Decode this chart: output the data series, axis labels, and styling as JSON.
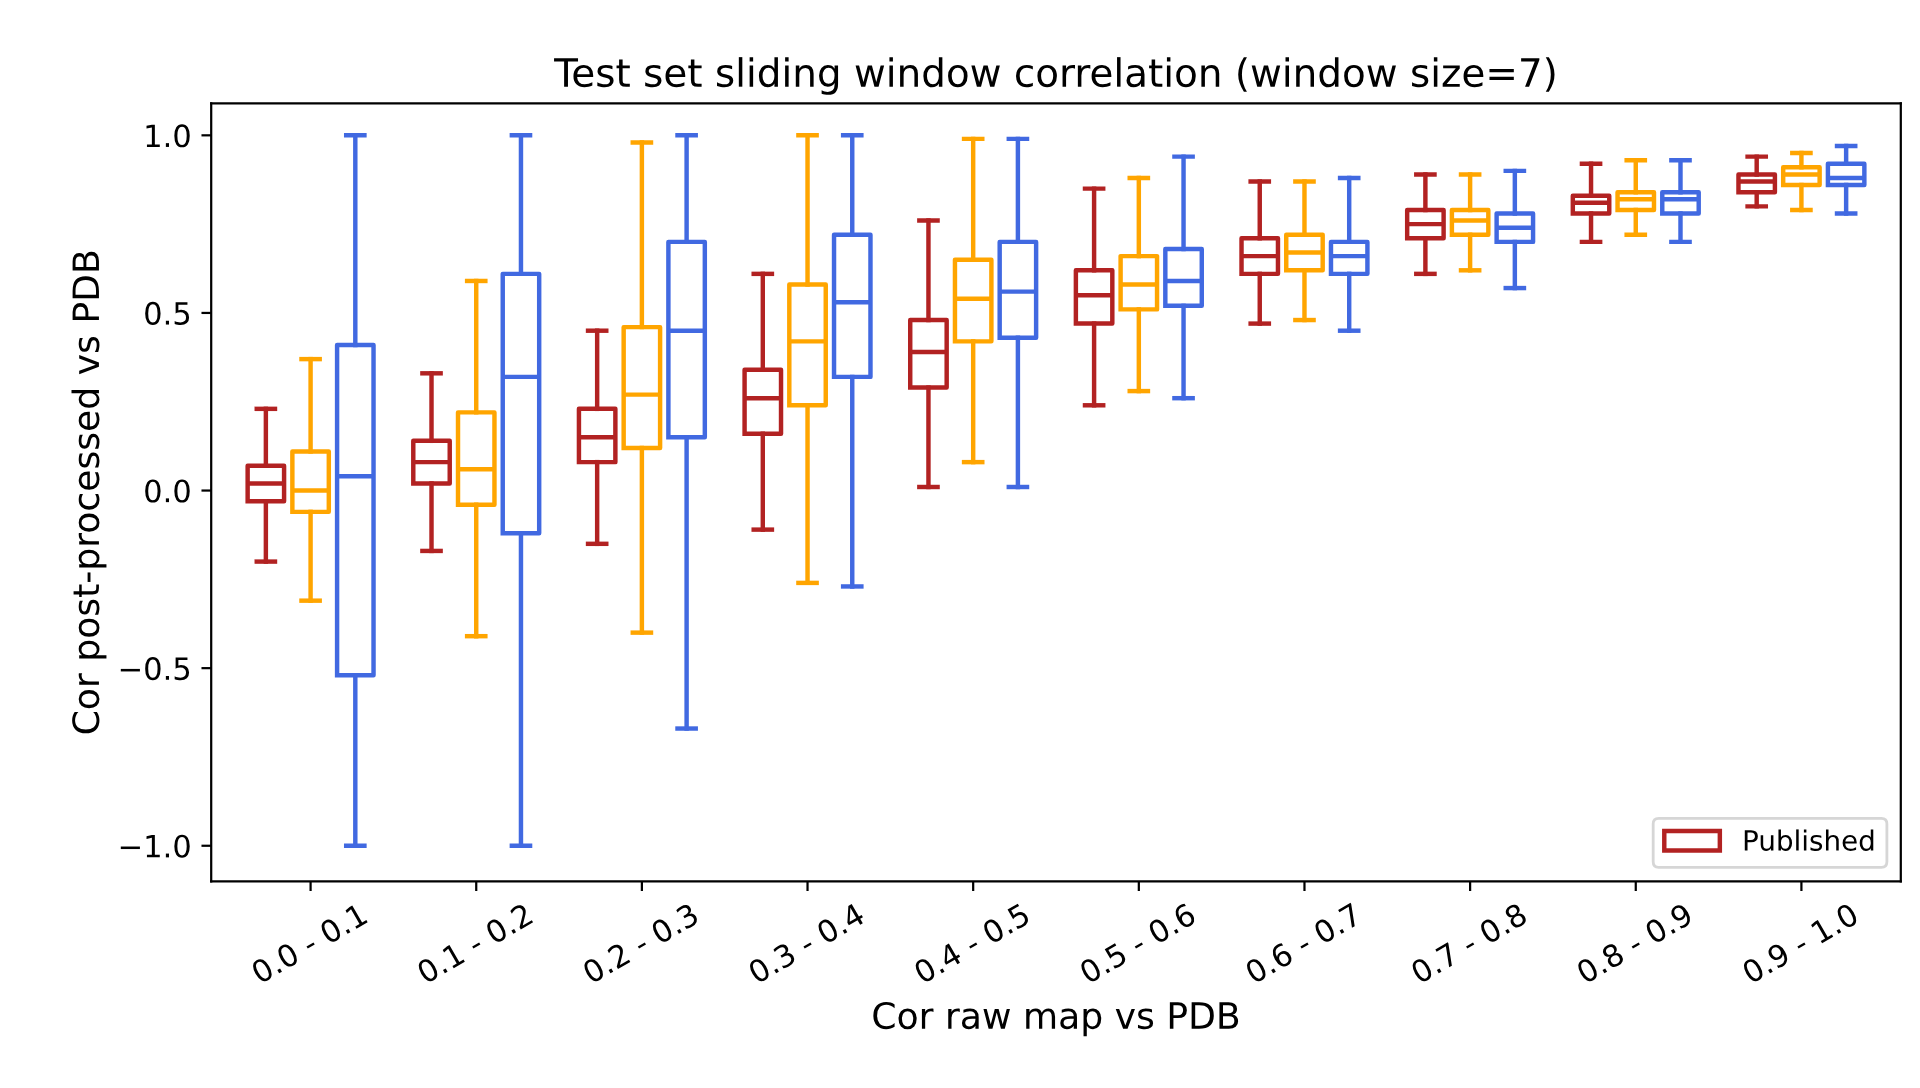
{
  "chart_data": {
    "type": "box",
    "title": "Test set sliding window correlation (window size=7)",
    "xlabel": "Cor raw map vs PDB",
    "ylabel": "Cor post-processed vs PDB",
    "categories": [
      "0.0 - 0.1",
      "0.1 - 0.2",
      "0.2 - 0.3",
      "0.3 - 0.4",
      "0.4 - 0.5",
      "0.5 - 0.6",
      "0.6 - 0.7",
      "0.7 - 0.8",
      "0.8 - 0.9",
      "0.9 - 1.0"
    ],
    "ylim": [
      -1.1,
      1.09
    ],
    "yticks": [
      {
        "value": -1.0,
        "label": "−1.0"
      },
      {
        "value": -0.5,
        "label": "−0.5"
      },
      {
        "value": 0.0,
        "label": "0.0"
      },
      {
        "value": 0.5,
        "label": "0.5"
      },
      {
        "value": 1.0,
        "label": "1.0"
      }
    ],
    "legend": "bottom right",
    "grid": false,
    "series": [
      {
        "name": "Published",
        "color": "#b22222",
        "boxes": [
          {
            "low": -0.2,
            "q1": -0.03,
            "median": 0.02,
            "q3": 0.07,
            "high": 0.23
          },
          {
            "low": -0.17,
            "q1": 0.02,
            "median": 0.08,
            "q3": 0.14,
            "high": 0.33
          },
          {
            "low": -0.15,
            "q1": 0.08,
            "median": 0.15,
            "q3": 0.23,
            "high": 0.45
          },
          {
            "low": -0.11,
            "q1": 0.16,
            "median": 0.26,
            "q3": 0.34,
            "high": 0.61
          },
          {
            "low": 0.01,
            "q1": 0.29,
            "median": 0.39,
            "q3": 0.48,
            "high": 0.76
          },
          {
            "low": 0.24,
            "q1": 0.47,
            "median": 0.55,
            "q3": 0.62,
            "high": 0.85
          },
          {
            "low": 0.47,
            "q1": 0.61,
            "median": 0.66,
            "q3": 0.71,
            "high": 0.87
          },
          {
            "low": 0.61,
            "q1": 0.71,
            "median": 0.75,
            "q3": 0.79,
            "high": 0.89
          },
          {
            "low": 0.7,
            "q1": 0.78,
            "median": 0.81,
            "q3": 0.83,
            "high": 0.92
          },
          {
            "low": 0.8,
            "q1": 0.84,
            "median": 0.87,
            "q3": 0.89,
            "high": 0.94
          }
        ]
      },
      {
        "color": "#ffa500",
        "boxes": [
          {
            "low": -0.31,
            "q1": -0.06,
            "median": 0.0,
            "q3": 0.11,
            "high": 0.37
          },
          {
            "low": -0.41,
            "q1": -0.04,
            "median": 0.06,
            "q3": 0.22,
            "high": 0.59
          },
          {
            "low": -0.4,
            "q1": 0.12,
            "median": 0.27,
            "q3": 0.46,
            "high": 0.98
          },
          {
            "low": -0.26,
            "q1": 0.24,
            "median": 0.42,
            "q3": 0.58,
            "high": 1.0
          },
          {
            "low": 0.08,
            "q1": 0.42,
            "median": 0.54,
            "q3": 0.65,
            "high": 0.99
          },
          {
            "low": 0.28,
            "q1": 0.51,
            "median": 0.58,
            "q3": 0.66,
            "high": 0.88
          },
          {
            "low": 0.48,
            "q1": 0.62,
            "median": 0.67,
            "q3": 0.72,
            "high": 0.87
          },
          {
            "low": 0.62,
            "q1": 0.72,
            "median": 0.76,
            "q3": 0.79,
            "high": 0.89
          },
          {
            "low": 0.72,
            "q1": 0.79,
            "median": 0.82,
            "q3": 0.84,
            "high": 0.93
          },
          {
            "low": 0.79,
            "q1": 0.86,
            "median": 0.89,
            "q3": 0.91,
            "high": 0.95
          }
        ]
      },
      {
        "color": "#4169e1",
        "boxes": [
          {
            "low": -1.0,
            "q1": -0.52,
            "median": 0.04,
            "q3": 0.41,
            "high": 1.0
          },
          {
            "low": -1.0,
            "q1": -0.12,
            "median": 0.32,
            "q3": 0.61,
            "high": 1.0
          },
          {
            "low": -0.67,
            "q1": 0.15,
            "median": 0.45,
            "q3": 0.7,
            "high": 1.0
          },
          {
            "low": -0.27,
            "q1": 0.32,
            "median": 0.53,
            "q3": 0.72,
            "high": 1.0
          },
          {
            "low": 0.01,
            "q1": 0.43,
            "median": 0.56,
            "q3": 0.7,
            "high": 0.99
          },
          {
            "low": 0.26,
            "q1": 0.52,
            "median": 0.59,
            "q3": 0.68,
            "high": 0.94
          },
          {
            "low": 0.45,
            "q1": 0.61,
            "median": 0.66,
            "q3": 0.7,
            "high": 0.88
          },
          {
            "low": 0.57,
            "q1": 0.7,
            "median": 0.74,
            "q3": 0.78,
            "high": 0.9
          },
          {
            "low": 0.7,
            "q1": 0.78,
            "median": 0.82,
            "q3": 0.84,
            "high": 0.93
          },
          {
            "low": 0.78,
            "q1": 0.86,
            "median": 0.88,
            "q3": 0.92,
            "high": 0.97
          }
        ]
      }
    ]
  }
}
